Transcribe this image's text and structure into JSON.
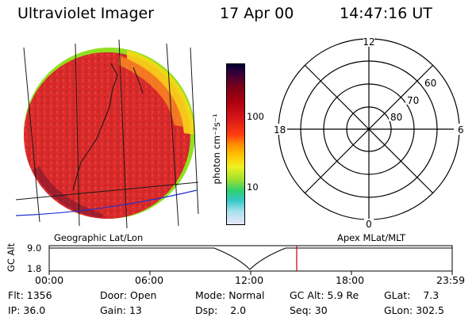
{
  "header": {
    "title": "Ultraviolet Imager",
    "date": "17 Apr 00",
    "time": "14:47:16 UT"
  },
  "colorbar": {
    "unit_label": "photon cm⁻²s⁻¹",
    "tick_labels": [
      "100",
      "10"
    ],
    "colors": [
      "#000033",
      "#3a003a",
      "#7a0018",
      "#b00010",
      "#d81818",
      "#ff3c10",
      "#ff8c00",
      "#ffc400",
      "#f0f020",
      "#a0e030",
      "#30d070",
      "#30c8c8",
      "#a8e0f0",
      "#e8e8f8"
    ]
  },
  "polar_plot": {
    "mlt_labels": [
      "12",
      "18",
      "6",
      "0"
    ],
    "lat_labels": [
      "60",
      "70",
      "80"
    ]
  },
  "timeline": {
    "left_label": "Geographic Lat/Lon",
    "right_label": "Apex MLat/MLT",
    "axis_title": "GC Alt",
    "y_ticks": [
      "9.0",
      "1.8"
    ],
    "x_ticks": [
      "00:00",
      "06:00",
      "12:00",
      "18:00",
      "23:59"
    ],
    "current_time_marker_color": "#c00000"
  },
  "status": {
    "row1": [
      {
        "label": "Flt:",
        "value": "1356"
      },
      {
        "label": "Door:",
        "value": "Open"
      },
      {
        "label": "Mode:",
        "value": "Normal"
      },
      {
        "label": "GC Alt:",
        "value": "5.9 Re"
      },
      {
        "label": "GLat:",
        "value": "7.3"
      }
    ],
    "row2": [
      {
        "label": "IP:",
        "value": "36.0"
      },
      {
        "label": "Gain:",
        "value": "13"
      },
      {
        "label": "Dsp:",
        "value": "2.0"
      },
      {
        "label": "Seq:",
        "value": "30"
      },
      {
        "label": "GLon:",
        "value": "302.5"
      }
    ]
  },
  "colors": {
    "disk_main": "#e03030",
    "disk_edge_green": "#90e020",
    "disk_edge_yellow": "#f8d818",
    "coast_line": "#1a1a1a",
    "equator_line": "#2030d0"
  }
}
